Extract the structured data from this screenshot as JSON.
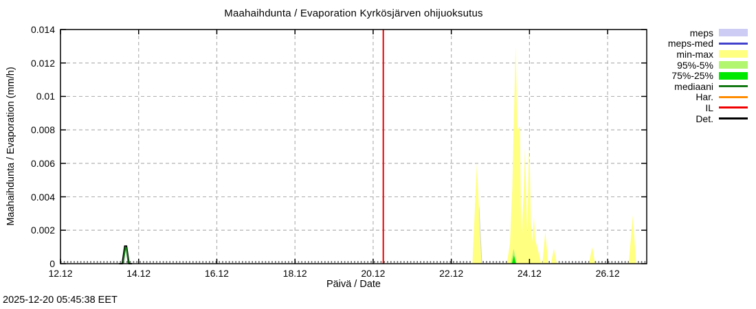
{
  "chart_data": {
    "type": "area",
    "title": "Maahaihdunta / Evaporation  Kyrkösjärven ohijuoksutus",
    "xlabel": "Päivä / Date",
    "ylabel": "Maahaihdunta / Evaporation (mm/h)",
    "timestamp": "2025-12-20 05:45:38 EET",
    "units": {
      "x": "days since 12.12",
      "y": "mm/h"
    },
    "grid": true,
    "colors": {
      "background": "#ffffff",
      "axis": "#000000",
      "grid": "#b3b3b3",
      "minor_ticks": "#333333"
    },
    "x_axis": {
      "start_day": 0,
      "end_day": 15,
      "tick_days": [
        0,
        2,
        4,
        6,
        8,
        10,
        12,
        14
      ],
      "tick_labels": [
        "12.12",
        "14.12",
        "16.12",
        "18.12",
        "20.12",
        "22.12",
        "24.12",
        "26.12"
      ]
    },
    "y_axis": {
      "min": 0,
      "max": 0.014,
      "tick_values": [
        0,
        0.002,
        0.004,
        0.006,
        0.008,
        0.01,
        0.012,
        0.014
      ],
      "tick_labels": [
        "0",
        "0.002",
        "0.004",
        "0.006",
        "0.008",
        "0.01",
        "0.012",
        "0.014"
      ]
    },
    "legend": [
      {
        "label": "meps",
        "color": "#ccccf4",
        "swatch": "band"
      },
      {
        "label": "meps-med",
        "color": "#4040cc",
        "swatch": "line"
      },
      {
        "label": "min-max",
        "color": "#ffff80",
        "swatch": "band"
      },
      {
        "label": "95%-5%",
        "color": "#b2f56e",
        "swatch": "band"
      },
      {
        "label": "75%-25%",
        "color": "#00e800",
        "swatch": "band"
      },
      {
        "label": "mediaani",
        "color": "#147814",
        "swatch": "line"
      },
      {
        "label": "Har.",
        "color": "#ff8c00",
        "swatch": "line"
      },
      {
        "label": "IL",
        "color": "#f00000",
        "swatch": "line"
      },
      {
        "label": "Det.",
        "color": "#000000",
        "swatch": "line"
      }
    ],
    "areas": [
      {
        "name": "meps-band",
        "series": "meps",
        "color": "#ccccf4",
        "points": [
          [
            10.62,
            0
          ],
          [
            10.715,
            0.0035
          ],
          [
            10.79,
            0
          ]
        ]
      },
      {
        "name": "minmax-spike-1",
        "series": "min-max",
        "color": "#ffff80",
        "points": [
          [
            10.54,
            0
          ],
          [
            10.655,
            0.006
          ],
          [
            10.77,
            0
          ]
        ]
      },
      {
        "name": "minmax-cluster",
        "series": "min-max",
        "color": "#ffff80",
        "points": [
          [
            11.42,
            0
          ],
          [
            11.5,
            0.0012
          ],
          [
            11.56,
            0.0045
          ],
          [
            11.61,
            0.0095
          ],
          [
            11.645,
            0.013
          ],
          [
            11.67,
            0.0105
          ],
          [
            11.69,
            0.008
          ],
          [
            11.755,
            0.0082
          ],
          [
            11.78,
            0.0035
          ],
          [
            11.8,
            0.0018
          ],
          [
            11.85,
            0.0042
          ],
          [
            11.885,
            0.0069
          ],
          [
            11.92,
            0.0038
          ],
          [
            11.945,
            0.0016
          ],
          [
            11.985,
            0.0068
          ],
          [
            12.01,
            0.0058
          ],
          [
            12.035,
            0.0025
          ],
          [
            12.07,
            0.0013
          ],
          [
            12.115,
            0.0028
          ],
          [
            12.15,
            0.0014
          ],
          [
            12.21,
            0.0009
          ],
          [
            12.3,
            0
          ]
        ]
      },
      {
        "name": "minmax-spike-2",
        "series": "min-max",
        "color": "#ffff80",
        "points": [
          [
            12.33,
            0
          ],
          [
            12.405,
            0.0019
          ],
          [
            12.48,
            0
          ]
        ]
      },
      {
        "name": "minmax-spike-3",
        "series": "min-max",
        "color": "#ffff80",
        "points": [
          [
            12.55,
            0
          ],
          [
            12.625,
            0.0009
          ],
          [
            12.7,
            0
          ]
        ]
      },
      {
        "name": "minmax-spike-4",
        "series": "min-max",
        "color": "#ffff80",
        "points": [
          [
            13.52,
            0
          ],
          [
            13.605,
            0.001
          ],
          [
            13.68,
            0
          ]
        ]
      },
      {
        "name": "minmax-spike-5",
        "series": "min-max",
        "color": "#ffff80",
        "points": [
          [
            14.54,
            0
          ],
          [
            14.645,
            0.0029
          ],
          [
            14.73,
            0
          ]
        ]
      },
      {
        "name": "p95-band",
        "series": "95%-5%",
        "color": "#b2f56e",
        "points": [
          [
            11.52,
            0
          ],
          [
            11.595,
            0.0009
          ],
          [
            11.67,
            0
          ]
        ]
      },
      {
        "name": "p75-band",
        "series": "75%-25%",
        "color": "#00e800",
        "points": [
          [
            11.55,
            0
          ],
          [
            11.6,
            0.0005
          ],
          [
            11.655,
            0
          ]
        ]
      }
    ],
    "lines": [
      {
        "name": "det-line-spike",
        "series": "Det.",
        "color": "#000000",
        "width": 2,
        "points": [
          [
            1.5,
            0
          ],
          [
            1.58,
            0
          ],
          [
            1.645,
            0.00105
          ],
          [
            1.69,
            0.00105
          ],
          [
            1.755,
            0
          ],
          [
            1.83,
            0
          ]
        ]
      },
      {
        "name": "mediaani-line-spike",
        "series": "mediaani",
        "color": "#147814",
        "width": 2,
        "points": [
          [
            1.6,
            0
          ],
          [
            1.66,
            0.00095
          ],
          [
            1.685,
            0.00095
          ],
          [
            1.74,
            0
          ]
        ]
      },
      {
        "name": "il-current-time-line",
        "series": "IL",
        "color": "#f00000",
        "width": 2,
        "points": [
          [
            8.26,
            0
          ],
          [
            8.26,
            0.014
          ]
        ]
      }
    ]
  }
}
